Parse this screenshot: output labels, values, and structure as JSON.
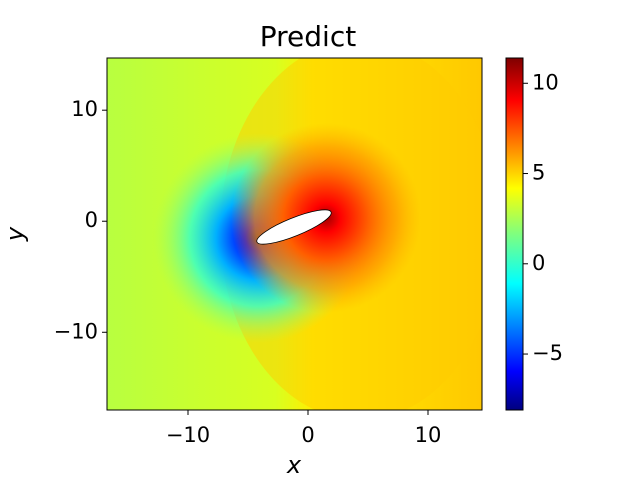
{
  "chart_data": {
    "type": "contour",
    "title": "Predict",
    "x_label": "x",
    "y_label": "y",
    "xlim": [
      -16.75,
      14.5
    ],
    "ylim": [
      -17,
      14.7
    ],
    "xticks": [
      {
        "value": -10,
        "label": "−10"
      },
      0,
      10
    ],
    "yticks": [
      {
        "value": -10,
        "label": "−10"
      },
      0,
      10
    ],
    "colormap": "jet",
    "colorbar_lim": [
      -8.1,
      11.4
    ],
    "colorbar_ticks": [
      {
        "value": -5,
        "label": "−5"
      },
      0,
      5,
      10
    ]
  }
}
